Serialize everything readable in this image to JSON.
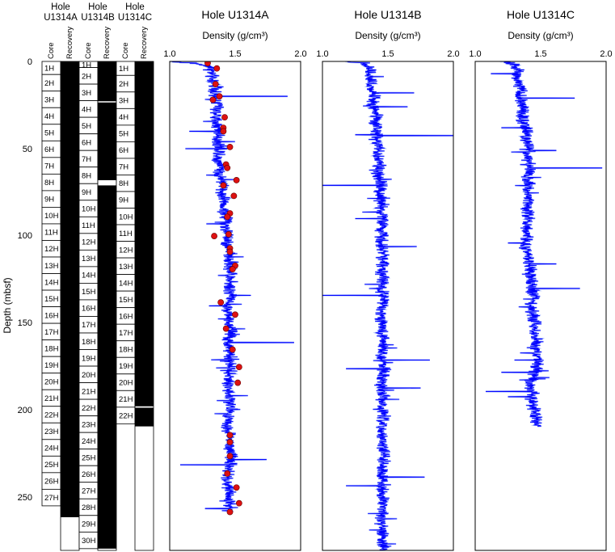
{
  "ylabel": "Depth (mbsf)",
  "ylim": [
    0,
    280
  ],
  "depth_ticks": [
    "0",
    "50",
    "100",
    "150",
    "200",
    "250"
  ],
  "depth_tick_values": [
    0,
    50,
    100,
    150,
    200,
    250
  ],
  "core_columns": [
    {
      "hole_label": "Hole",
      "hole_name": "U1314A",
      "core_header": "Core",
      "recovery_header": "Recovery",
      "cores": [
        {
          "name": "1H",
          "top": 0,
          "bottom": 7.5
        },
        {
          "name": "2H",
          "top": 7.5,
          "bottom": 17
        },
        {
          "name": "3H",
          "top": 17,
          "bottom": 26.5
        },
        {
          "name": "4H",
          "top": 26.5,
          "bottom": 36
        },
        {
          "name": "5H",
          "top": 36,
          "bottom": 45.5
        },
        {
          "name": "6H",
          "top": 45.5,
          "bottom": 55
        },
        {
          "name": "7H",
          "top": 55,
          "bottom": 64.5
        },
        {
          "name": "8H",
          "top": 64.5,
          "bottom": 74
        },
        {
          "name": "9H",
          "top": 74,
          "bottom": 83.5
        },
        {
          "name": "10H",
          "top": 83.5,
          "bottom": 93
        },
        {
          "name": "11H",
          "top": 93,
          "bottom": 102.5
        },
        {
          "name": "12H",
          "top": 102.5,
          "bottom": 112
        },
        {
          "name": "13H",
          "top": 112,
          "bottom": 121.5
        },
        {
          "name": "14H",
          "top": 121.5,
          "bottom": 131
        },
        {
          "name": "15H",
          "top": 131,
          "bottom": 140.5
        },
        {
          "name": "16H",
          "top": 140.5,
          "bottom": 150
        },
        {
          "name": "17H",
          "top": 150,
          "bottom": 159.5
        },
        {
          "name": "18H",
          "top": 159.5,
          "bottom": 169
        },
        {
          "name": "19H",
          "top": 169,
          "bottom": 178.5
        },
        {
          "name": "20H",
          "top": 178.5,
          "bottom": 188
        },
        {
          "name": "21H",
          "top": 188,
          "bottom": 197.5
        },
        {
          "name": "22H",
          "top": 197.5,
          "bottom": 207
        },
        {
          "name": "23H",
          "top": 207,
          "bottom": 216.5
        },
        {
          "name": "24H",
          "top": 216.5,
          "bottom": 226
        },
        {
          "name": "25H",
          "top": 226,
          "bottom": 235.5
        },
        {
          "name": "26H",
          "top": 235.5,
          "bottom": 245
        },
        {
          "name": "27H",
          "top": 245,
          "bottom": 254.5
        }
      ],
      "recovery": [
        [
          0,
          261
        ]
      ]
    },
    {
      "hole_label": "Hole",
      "hole_name": "U1314B",
      "core_header": "Core",
      "recovery_header": "Recovery",
      "cores": [
        {
          "name": "1H",
          "top": 0,
          "bottom": 3.5
        },
        {
          "name": "2H",
          "top": 3.5,
          "bottom": 13
        },
        {
          "name": "3H",
          "top": 13,
          "bottom": 22.5
        },
        {
          "name": "4H",
          "top": 22.5,
          "bottom": 32
        },
        {
          "name": "5H",
          "top": 32,
          "bottom": 41.5
        },
        {
          "name": "6H",
          "top": 41.5,
          "bottom": 51
        },
        {
          "name": "7H",
          "top": 51,
          "bottom": 60.5
        },
        {
          "name": "8H",
          "top": 60.5,
          "bottom": 70
        },
        {
          "name": "9H",
          "top": 70,
          "bottom": 79.5
        },
        {
          "name": "10H",
          "top": 79.5,
          "bottom": 89
        },
        {
          "name": "11H",
          "top": 89,
          "bottom": 98.5
        },
        {
          "name": "12H",
          "top": 98.5,
          "bottom": 108
        },
        {
          "name": "13H",
          "top": 108,
          "bottom": 117.5
        },
        {
          "name": "14H",
          "top": 117.5,
          "bottom": 127
        },
        {
          "name": "15H",
          "top": 127,
          "bottom": 136.5
        },
        {
          "name": "16H",
          "top": 136.5,
          "bottom": 146
        },
        {
          "name": "17H",
          "top": 146,
          "bottom": 155.5
        },
        {
          "name": "18H",
          "top": 155.5,
          "bottom": 165
        },
        {
          "name": "19H",
          "top": 165,
          "bottom": 174.5
        },
        {
          "name": "20H",
          "top": 174.5,
          "bottom": 184
        },
        {
          "name": "21H",
          "top": 184,
          "bottom": 193.5
        },
        {
          "name": "22H",
          "top": 193.5,
          "bottom": 203
        },
        {
          "name": "23H",
          "top": 203,
          "bottom": 212.5
        },
        {
          "name": "24H",
          "top": 212.5,
          "bottom": 222
        },
        {
          "name": "25H",
          "top": 222,
          "bottom": 231.5
        },
        {
          "name": "26H",
          "top": 231.5,
          "bottom": 241
        },
        {
          "name": "27H",
          "top": 241,
          "bottom": 250.5
        },
        {
          "name": "28H",
          "top": 250.5,
          "bottom": 260
        },
        {
          "name": "29H",
          "top": 260,
          "bottom": 269.5
        },
        {
          "name": "30H",
          "top": 269.5,
          "bottom": 279
        }
      ],
      "recovery": [
        [
          0,
          22.8
        ],
        [
          23.5,
          68
        ],
        [
          71,
          279
        ]
      ]
    },
    {
      "hole_label": "Hole",
      "hole_name": "U1314C",
      "core_header": "Core",
      "recovery_header": "Recovery",
      "cores": [
        {
          "name": "1H",
          "top": 0,
          "bottom": 8
        },
        {
          "name": "2H",
          "top": 8,
          "bottom": 17.5
        },
        {
          "name": "3H",
          "top": 17.5,
          "bottom": 27
        },
        {
          "name": "4H",
          "top": 27,
          "bottom": 36.5
        },
        {
          "name": "5H",
          "top": 36.5,
          "bottom": 46
        },
        {
          "name": "6H",
          "top": 46,
          "bottom": 55.5
        },
        {
          "name": "7H",
          "top": 55.5,
          "bottom": 65
        },
        {
          "name": "8H",
          "top": 65,
          "bottom": 74.5
        },
        {
          "name": "9H",
          "top": 74.5,
          "bottom": 84
        },
        {
          "name": "10H",
          "top": 84,
          "bottom": 93.5
        },
        {
          "name": "11H",
          "top": 93.5,
          "bottom": 103
        },
        {
          "name": "12H",
          "top": 103,
          "bottom": 112.5
        },
        {
          "name": "13H",
          "top": 112.5,
          "bottom": 122
        },
        {
          "name": "14H",
          "top": 122,
          "bottom": 131.5
        },
        {
          "name": "15H",
          "top": 131.5,
          "bottom": 141
        },
        {
          "name": "16H",
          "top": 141,
          "bottom": 150.5
        },
        {
          "name": "17H",
          "top": 150.5,
          "bottom": 160
        },
        {
          "name": "18H",
          "top": 160,
          "bottom": 169.5
        },
        {
          "name": "19H",
          "top": 169.5,
          "bottom": 179
        },
        {
          "name": "20H",
          "top": 179,
          "bottom": 188.5
        },
        {
          "name": "21H",
          "top": 188.5,
          "bottom": 198
        },
        {
          "name": "22H",
          "top": 198,
          "bottom": 207.5
        }
      ],
      "recovery": [
        [
          0,
          197.5
        ],
        [
          198.3,
          209
        ]
      ]
    }
  ],
  "chart_data": [
    {
      "type": "line",
      "title": "Hole U1314A",
      "xlabel": "Density (g/cm³)",
      "xlim": [
        1.0,
        2.0
      ],
      "xticks": [
        "1.0",
        "1.5",
        "2.0"
      ],
      "ylabel": "Depth (mbsf)",
      "ylim": [
        0,
        280
      ],
      "grid": false,
      "depth_range": [
        0,
        258
      ],
      "series": [
        {
          "color": "#0000ff",
          "x": [
            1.0,
            1.18,
            1.33,
            1.32,
            1.36,
            1.33,
            1.37,
            1.36,
            1.35,
            1.38,
            1.37,
            1.39,
            1.36,
            1.4,
            1.38,
            1.41,
            1.4,
            1.42,
            1.41,
            1.44,
            1.42,
            1.45,
            1.44,
            1.46,
            1.45,
            1.47,
            1.46,
            1.45,
            1.47,
            1.44,
            1.46,
            1.45,
            1.47,
            1.44,
            1.46,
            1.45,
            1.47,
            1.46,
            1.44,
            1.46,
            1.45,
            1.47,
            1.45,
            1.44,
            1.46,
            1.45,
            1.47,
            1.46,
            1.45,
            1.44,
            1.46,
            1.45
          ],
          "y": [
            0,
            1,
            3,
            10,
            15,
            20,
            25,
            30,
            35,
            40,
            45,
            50,
            55,
            60,
            65,
            70,
            75,
            80,
            85,
            90,
            95,
            100,
            105,
            110,
            115,
            120,
            125,
            130,
            135,
            140,
            145,
            150,
            155,
            160,
            165,
            170,
            175,
            180,
            185,
            190,
            195,
            200,
            205,
            210,
            215,
            220,
            225,
            230,
            235,
            240,
            245,
            258
          ]
        }
      ],
      "spikes": [
        {
          "depth": 20,
          "value": 1.9
        },
        {
          "depth": 40,
          "value": 1.15
        },
        {
          "depth": 50,
          "value": 1.12
        },
        {
          "depth": 93,
          "value": 1.28
        },
        {
          "depth": 134,
          "value": 1.62
        },
        {
          "depth": 140,
          "value": 1.3
        },
        {
          "depth": 161,
          "value": 1.95
        },
        {
          "depth": 231,
          "value": 1.08
        },
        {
          "depth": 228,
          "value": 1.74
        },
        {
          "depth": 256,
          "value": 1.27
        }
      ],
      "discrete_series": {
        "color": "#dd1111",
        "x": [
          1.29,
          1.36,
          1.35,
          1.38,
          1.33,
          1.42,
          1.41,
          1.41,
          1.46,
          1.43,
          1.44,
          1.51,
          1.41,
          1.49,
          1.46,
          1.44,
          1.45,
          1.34,
          1.46,
          1.46,
          1.5,
          1.48,
          1.39,
          1.5,
          1.43,
          1.48,
          1.53,
          1.52,
          1.46,
          1.46,
          1.46,
          1.44,
          1.51,
          1.53,
          1.46
        ],
        "y": [
          1,
          4,
          13,
          20,
          22,
          32,
          38,
          40,
          49,
          59,
          61,
          68,
          71,
          77,
          87,
          89,
          99,
          100,
          107,
          109,
          117,
          119,
          138,
          145,
          153,
          165,
          175,
          184,
          214,
          218,
          226,
          236,
          244,
          253,
          258
        ]
      }
    },
    {
      "type": "line",
      "title": "Hole U1314B",
      "xlabel": "Density (g/cm³)",
      "xlim": [
        1.0,
        2.0
      ],
      "xticks": [
        "1.0",
        "1.5",
        "2.0"
      ],
      "ylabel": "Depth (mbsf)",
      "ylim": [
        0,
        280
      ],
      "grid": false,
      "depth_range": [
        0,
        280
      ],
      "series": [
        {
          "color": "#0000ff",
          "x": [
            1.2,
            1.33,
            1.36,
            1.38,
            1.37,
            1.4,
            1.38,
            1.41,
            1.4,
            1.42,
            1.41,
            1.43,
            1.42,
            1.44,
            1.43,
            1.45,
            1.44,
            1.46,
            1.45,
            1.47,
            1.45,
            1.46,
            1.45,
            1.47,
            1.46,
            1.45,
            1.46,
            1.45,
            1.47,
            1.46,
            1.45,
            1.46,
            1.45,
            1.47,
            1.46,
            1.45,
            1.47,
            1.46,
            1.45,
            1.46,
            1.45,
            1.47,
            1.46,
            1.45,
            1.46,
            1.45,
            1.47,
            1.46,
            1.45,
            1.46,
            1.45,
            1.47,
            1.46,
            1.45,
            1.46,
            1.47
          ],
          "y": [
            0,
            1,
            5,
            10,
            15,
            20,
            25,
            30,
            35,
            40,
            45,
            50,
            55,
            60,
            65,
            70,
            75,
            80,
            85,
            90,
            95,
            100,
            105,
            110,
            115,
            120,
            125,
            130,
            135,
            140,
            145,
            150,
            155,
            160,
            165,
            170,
            175,
            180,
            185,
            190,
            195,
            200,
            205,
            210,
            215,
            220,
            225,
            230,
            235,
            240,
            245,
            250,
            255,
            260,
            270,
            280
          ]
        }
      ],
      "spikes": [
        {
          "depth": 18,
          "value": 1.7
        },
        {
          "depth": 26,
          "value": 1.65
        },
        {
          "depth": 42,
          "value": 1.25
        },
        {
          "depth": 42.5,
          "value": 2.0
        },
        {
          "depth": 71,
          "value": 1.0
        },
        {
          "depth": 90,
          "value": 1.25
        },
        {
          "depth": 106,
          "value": 1.72
        },
        {
          "depth": 134,
          "value": 1.0
        },
        {
          "depth": 171,
          "value": 1.82
        },
        {
          "depth": 176,
          "value": 1.18
        },
        {
          "depth": 187,
          "value": 1.75
        },
        {
          "depth": 238,
          "value": 1.78
        },
        {
          "depth": 243,
          "value": 1.18
        }
      ]
    },
    {
      "type": "line",
      "title": "Hole U1314C",
      "xlabel": "Density (g/cm³)",
      "xlim": [
        1.0,
        2.0
      ],
      "xticks": [
        "1.0",
        "1.5",
        "2.0"
      ],
      "ylabel": "Depth (mbsf)",
      "ylim": [
        0,
        280
      ],
      "grid": false,
      "depth_range": [
        0,
        209
      ],
      "series": [
        {
          "color": "#0000ff",
          "x": [
            1.22,
            1.3,
            1.33,
            1.32,
            1.35,
            1.34,
            1.36,
            1.35,
            1.37,
            1.4,
            1.38,
            1.41,
            1.39,
            1.42,
            1.4,
            1.41,
            1.39,
            1.42,
            1.4,
            1.41,
            1.39,
            1.4,
            1.38,
            1.4,
            1.41,
            1.43,
            1.42,
            1.44,
            1.45,
            1.43,
            1.44,
            1.46,
            1.45,
            1.47,
            1.46,
            1.48,
            1.47,
            1.45,
            1.42,
            1.44,
            1.43,
            1.45,
            1.47
          ],
          "y": [
            0,
            2,
            5,
            10,
            15,
            20,
            25,
            30,
            35,
            40,
            45,
            50,
            55,
            60,
            65,
            70,
            75,
            80,
            85,
            90,
            95,
            100,
            105,
            110,
            115,
            120,
            125,
            130,
            135,
            140,
            145,
            150,
            155,
            160,
            165,
            170,
            175,
            180,
            185,
            190,
            195,
            200,
            209
          ]
        }
      ],
      "spikes": [
        {
          "depth": 7,
          "value": 1.12
        },
        {
          "depth": 21,
          "value": 1.76
        },
        {
          "depth": 38,
          "value": 1.2
        },
        {
          "depth": 51,
          "value": 1.62
        },
        {
          "depth": 61,
          "value": 1.97
        },
        {
          "depth": 104,
          "value": 1.25
        },
        {
          "depth": 116,
          "value": 1.62
        },
        {
          "depth": 130,
          "value": 1.8
        },
        {
          "depth": 171,
          "value": 1.3
        },
        {
          "depth": 178,
          "value": 1.2
        },
        {
          "depth": 189,
          "value": 1.08
        },
        {
          "depth": 192,
          "value": 1.25
        }
      ]
    }
  ]
}
